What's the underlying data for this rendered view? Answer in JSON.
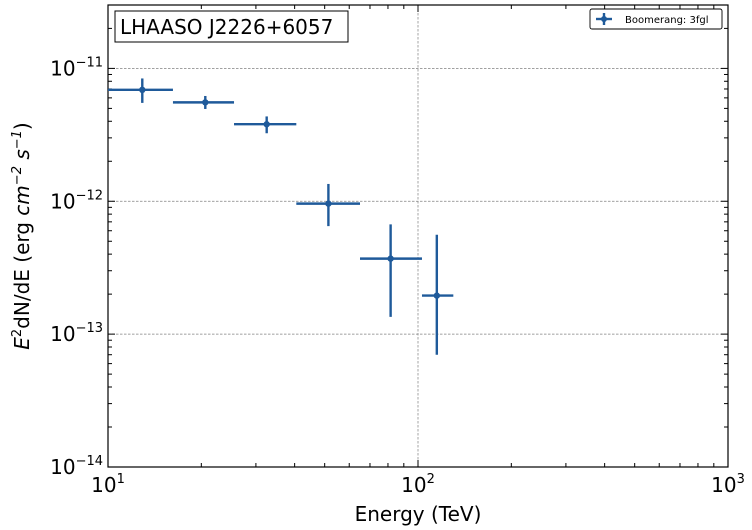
{
  "chart_data": {
    "type": "scatter",
    "title": "LHAASO J2226+6057",
    "xlabel": "Energy (TeV)",
    "ylabel_base": "E",
    "ylabel_sup": "2",
    "ylabel_mid": "dN/dE (erg ",
    "ylabel_cm": "cm",
    "ylabel_cm_sup": "−2",
    "ylabel_s": " s",
    "ylabel_s_sup": "−1",
    "ylabel_end": ")",
    "xscale": "log",
    "yscale": "log",
    "xlim": [
      10,
      1000
    ],
    "ylim": [
      1e-14,
      3e-11
    ],
    "grid": true,
    "legend_position": "top-right",
    "x_ticks": [
      {
        "value": 10,
        "base": "10",
        "exp": "1"
      },
      {
        "value": 100,
        "base": "10",
        "exp": "2"
      },
      {
        "value": 1000,
        "base": "10",
        "exp": "3"
      }
    ],
    "y_ticks": [
      {
        "value": 1e-14,
        "base": "10",
        "exp": "−14"
      },
      {
        "value": 1e-13,
        "base": "10",
        "exp": "−13"
      },
      {
        "value": 1e-12,
        "base": "10",
        "exp": "−12"
      },
      {
        "value": 1e-11,
        "base": "10",
        "exp": "−11"
      }
    ],
    "series": [
      {
        "name": "Boomerang: 3fgl",
        "color": "#1f5a9a",
        "points": [
          {
            "x": 12.9,
            "y": 6.9e-12,
            "x_low": 10.0,
            "x_high": 16.2,
            "y_low": 5.5e-12,
            "y_high": 8.4e-12
          },
          {
            "x": 20.6,
            "y": 5.55e-12,
            "x_low": 16.2,
            "x_high": 25.5,
            "y_low": 4.95e-12,
            "y_high": 6.2e-12
          },
          {
            "x": 32.5,
            "y": 3.8e-12,
            "x_low": 25.5,
            "x_high": 40.5,
            "y_low": 3.25e-12,
            "y_high": 4.35e-12
          },
          {
            "x": 51.4,
            "y": 9.6e-13,
            "x_low": 40.5,
            "x_high": 65.0,
            "y_low": 6.5e-13,
            "y_high": 1.35e-12
          },
          {
            "x": 81.6,
            "y": 3.7e-13,
            "x_low": 65.0,
            "x_high": 103.0,
            "y_low": 1.35e-13,
            "y_high": 6.7e-13
          },
          {
            "x": 115.0,
            "y": 1.95e-13,
            "x_low": 103.0,
            "x_high": 130.0,
            "y_low": 7e-14,
            "y_high": 5.6e-13
          }
        ]
      }
    ]
  }
}
